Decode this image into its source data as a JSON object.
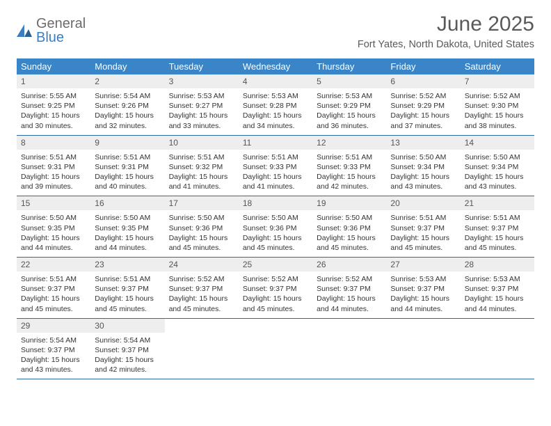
{
  "brand": {
    "part1": "General",
    "part2": "Blue"
  },
  "title": "June 2025",
  "location": "Fort Yates, North Dakota, United States",
  "colors": {
    "header_bg": "#3a85c7",
    "header_text": "#ffffff",
    "daynum_bg": "#eeeeee",
    "border": "#2d6aa3",
    "body_text": "#333333",
    "title_text": "#5a5a5a",
    "brand_gray": "#6b6b6b",
    "brand_blue": "#3a7fbf"
  },
  "day_names": [
    "Sunday",
    "Monday",
    "Tuesday",
    "Wednesday",
    "Thursday",
    "Friday",
    "Saturday"
  ],
  "weeks": [
    [
      {
        "n": "1",
        "sr": "Sunrise: 5:55 AM",
        "ss": "Sunset: 9:25 PM",
        "dl1": "Daylight: 15 hours",
        "dl2": "and 30 minutes."
      },
      {
        "n": "2",
        "sr": "Sunrise: 5:54 AM",
        "ss": "Sunset: 9:26 PM",
        "dl1": "Daylight: 15 hours",
        "dl2": "and 32 minutes."
      },
      {
        "n": "3",
        "sr": "Sunrise: 5:53 AM",
        "ss": "Sunset: 9:27 PM",
        "dl1": "Daylight: 15 hours",
        "dl2": "and 33 minutes."
      },
      {
        "n": "4",
        "sr": "Sunrise: 5:53 AM",
        "ss": "Sunset: 9:28 PM",
        "dl1": "Daylight: 15 hours",
        "dl2": "and 34 minutes."
      },
      {
        "n": "5",
        "sr": "Sunrise: 5:53 AM",
        "ss": "Sunset: 9:29 PM",
        "dl1": "Daylight: 15 hours",
        "dl2": "and 36 minutes."
      },
      {
        "n": "6",
        "sr": "Sunrise: 5:52 AM",
        "ss": "Sunset: 9:29 PM",
        "dl1": "Daylight: 15 hours",
        "dl2": "and 37 minutes."
      },
      {
        "n": "7",
        "sr": "Sunrise: 5:52 AM",
        "ss": "Sunset: 9:30 PM",
        "dl1": "Daylight: 15 hours",
        "dl2": "and 38 minutes."
      }
    ],
    [
      {
        "n": "8",
        "sr": "Sunrise: 5:51 AM",
        "ss": "Sunset: 9:31 PM",
        "dl1": "Daylight: 15 hours",
        "dl2": "and 39 minutes."
      },
      {
        "n": "9",
        "sr": "Sunrise: 5:51 AM",
        "ss": "Sunset: 9:31 PM",
        "dl1": "Daylight: 15 hours",
        "dl2": "and 40 minutes."
      },
      {
        "n": "10",
        "sr": "Sunrise: 5:51 AM",
        "ss": "Sunset: 9:32 PM",
        "dl1": "Daylight: 15 hours",
        "dl2": "and 41 minutes."
      },
      {
        "n": "11",
        "sr": "Sunrise: 5:51 AM",
        "ss": "Sunset: 9:33 PM",
        "dl1": "Daylight: 15 hours",
        "dl2": "and 41 minutes."
      },
      {
        "n": "12",
        "sr": "Sunrise: 5:51 AM",
        "ss": "Sunset: 9:33 PM",
        "dl1": "Daylight: 15 hours",
        "dl2": "and 42 minutes."
      },
      {
        "n": "13",
        "sr": "Sunrise: 5:50 AM",
        "ss": "Sunset: 9:34 PM",
        "dl1": "Daylight: 15 hours",
        "dl2": "and 43 minutes."
      },
      {
        "n": "14",
        "sr": "Sunrise: 5:50 AM",
        "ss": "Sunset: 9:34 PM",
        "dl1": "Daylight: 15 hours",
        "dl2": "and 43 minutes."
      }
    ],
    [
      {
        "n": "15",
        "sr": "Sunrise: 5:50 AM",
        "ss": "Sunset: 9:35 PM",
        "dl1": "Daylight: 15 hours",
        "dl2": "and 44 minutes."
      },
      {
        "n": "16",
        "sr": "Sunrise: 5:50 AM",
        "ss": "Sunset: 9:35 PM",
        "dl1": "Daylight: 15 hours",
        "dl2": "and 44 minutes."
      },
      {
        "n": "17",
        "sr": "Sunrise: 5:50 AM",
        "ss": "Sunset: 9:36 PM",
        "dl1": "Daylight: 15 hours",
        "dl2": "and 45 minutes."
      },
      {
        "n": "18",
        "sr": "Sunrise: 5:50 AM",
        "ss": "Sunset: 9:36 PM",
        "dl1": "Daylight: 15 hours",
        "dl2": "and 45 minutes."
      },
      {
        "n": "19",
        "sr": "Sunrise: 5:50 AM",
        "ss": "Sunset: 9:36 PM",
        "dl1": "Daylight: 15 hours",
        "dl2": "and 45 minutes."
      },
      {
        "n": "20",
        "sr": "Sunrise: 5:51 AM",
        "ss": "Sunset: 9:37 PM",
        "dl1": "Daylight: 15 hours",
        "dl2": "and 45 minutes."
      },
      {
        "n": "21",
        "sr": "Sunrise: 5:51 AM",
        "ss": "Sunset: 9:37 PM",
        "dl1": "Daylight: 15 hours",
        "dl2": "and 45 minutes."
      }
    ],
    [
      {
        "n": "22",
        "sr": "Sunrise: 5:51 AM",
        "ss": "Sunset: 9:37 PM",
        "dl1": "Daylight: 15 hours",
        "dl2": "and 45 minutes."
      },
      {
        "n": "23",
        "sr": "Sunrise: 5:51 AM",
        "ss": "Sunset: 9:37 PM",
        "dl1": "Daylight: 15 hours",
        "dl2": "and 45 minutes."
      },
      {
        "n": "24",
        "sr": "Sunrise: 5:52 AM",
        "ss": "Sunset: 9:37 PM",
        "dl1": "Daylight: 15 hours",
        "dl2": "and 45 minutes."
      },
      {
        "n": "25",
        "sr": "Sunrise: 5:52 AM",
        "ss": "Sunset: 9:37 PM",
        "dl1": "Daylight: 15 hours",
        "dl2": "and 45 minutes."
      },
      {
        "n": "26",
        "sr": "Sunrise: 5:52 AM",
        "ss": "Sunset: 9:37 PM",
        "dl1": "Daylight: 15 hours",
        "dl2": "and 44 minutes."
      },
      {
        "n": "27",
        "sr": "Sunrise: 5:53 AM",
        "ss": "Sunset: 9:37 PM",
        "dl1": "Daylight: 15 hours",
        "dl2": "and 44 minutes."
      },
      {
        "n": "28",
        "sr": "Sunrise: 5:53 AM",
        "ss": "Sunset: 9:37 PM",
        "dl1": "Daylight: 15 hours",
        "dl2": "and 44 minutes."
      }
    ],
    [
      {
        "n": "29",
        "sr": "Sunrise: 5:54 AM",
        "ss": "Sunset: 9:37 PM",
        "dl1": "Daylight: 15 hours",
        "dl2": "and 43 minutes."
      },
      {
        "n": "30",
        "sr": "Sunrise: 5:54 AM",
        "ss": "Sunset: 9:37 PM",
        "dl1": "Daylight: 15 hours",
        "dl2": "and 42 minutes."
      }
    ]
  ]
}
